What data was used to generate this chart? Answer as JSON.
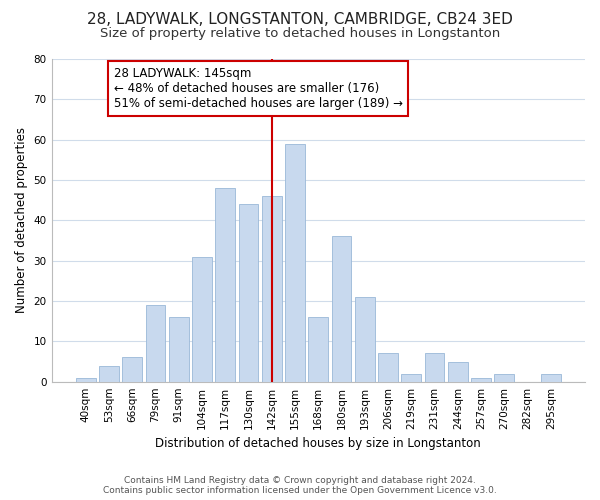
{
  "title": "28, LADYWALK, LONGSTANTON, CAMBRIDGE, CB24 3ED",
  "subtitle": "Size of property relative to detached houses in Longstanton",
  "xlabel": "Distribution of detached houses by size in Longstanton",
  "ylabel": "Number of detached properties",
  "bar_labels": [
    "40sqm",
    "53sqm",
    "66sqm",
    "79sqm",
    "91sqm",
    "104sqm",
    "117sqm",
    "130sqm",
    "142sqm",
    "155sqm",
    "168sqm",
    "180sqm",
    "193sqm",
    "206sqm",
    "219sqm",
    "231sqm",
    "244sqm",
    "257sqm",
    "270sqm",
    "282sqm",
    "295sqm"
  ],
  "bar_values": [
    1,
    4,
    6,
    19,
    16,
    31,
    48,
    44,
    46,
    59,
    16,
    36,
    21,
    7,
    2,
    7,
    5,
    1,
    2,
    0,
    2
  ],
  "bar_color": "#c8d9ee",
  "bar_edge_color": "#9ab8d8",
  "grid_color": "#d0dcea",
  "bg_color": "#ffffff",
  "vline_x": 8,
  "vline_color": "#cc0000",
  "annotation_text": "28 LADYWALK: 145sqm\n← 48% of detached houses are smaller (176)\n51% of semi-detached houses are larger (189) →",
  "annotation_box_color": "#ffffff",
  "annotation_box_edge": "#cc0000",
  "ylim": [
    0,
    80
  ],
  "yticks": [
    0,
    10,
    20,
    30,
    40,
    50,
    60,
    70,
    80
  ],
  "footer_line1": "Contains HM Land Registry data © Crown copyright and database right 2024.",
  "footer_line2": "Contains public sector information licensed under the Open Government Licence v3.0.",
  "title_fontsize": 11,
  "subtitle_fontsize": 9.5,
  "axis_label_fontsize": 8.5,
  "tick_fontsize": 7.5,
  "annotation_fontsize": 8.5,
  "footer_fontsize": 6.5
}
